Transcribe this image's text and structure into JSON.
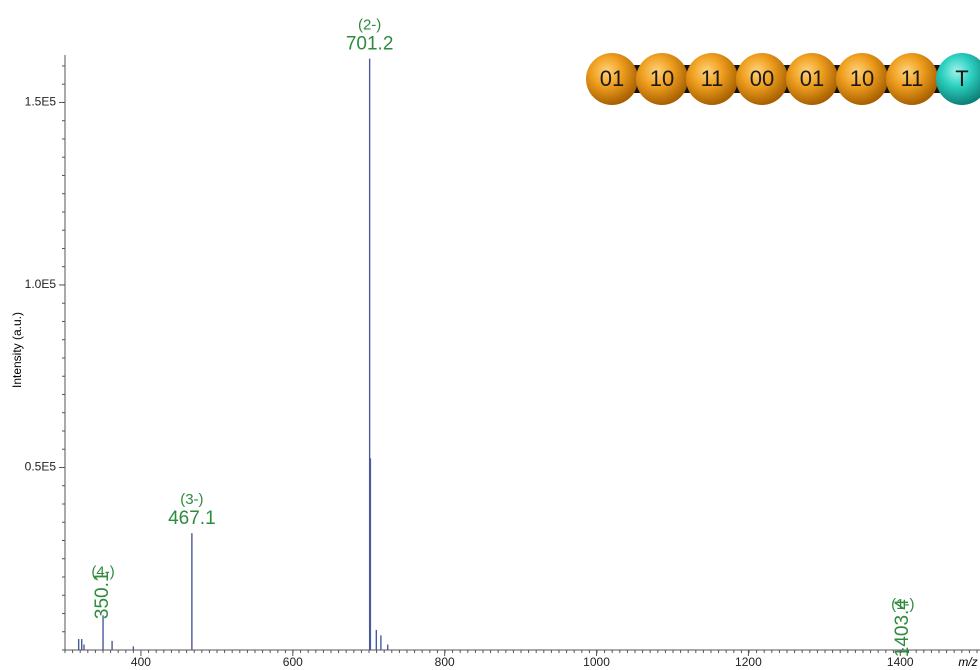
{
  "chart_data": {
    "type": "spectrum",
    "x_label": "m/z",
    "y_label": "Intensity (a.u.)",
    "x": [
      318,
      322,
      325,
      350.1,
      362,
      390,
      467.1,
      702.2,
      701.2,
      710,
      716,
      725,
      1403.4
    ],
    "values": [
      3000,
      3000,
      1500,
      9500,
      2500,
      1000,
      32000,
      52500,
      162000,
      5500,
      4000,
      1500,
      500
    ],
    "charges": [
      null,
      null,
      null,
      "(4-)",
      null,
      null,
      "(3-)",
      null,
      "(2-)",
      null,
      null,
      null,
      "(1-)"
    ],
    "color": "#4a5a9a",
    "label_color": "#2e8b3e",
    "xlim": [
      300,
      1505
    ],
    "ylim": [
      0,
      163000
    ],
    "xticks": [
      400,
      600,
      800,
      1000,
      1200,
      1400
    ],
    "yticks": [
      {
        "value": 50000,
        "label": "0.5E5"
      },
      {
        "value": 100000,
        "label": "1.0E5"
      },
      {
        "value": 150000,
        "label": "1.5E5"
      }
    ],
    "inset_beads": [
      "01",
      "10",
      "11",
      "00",
      "01",
      "10",
      "11",
      "T"
    ]
  }
}
